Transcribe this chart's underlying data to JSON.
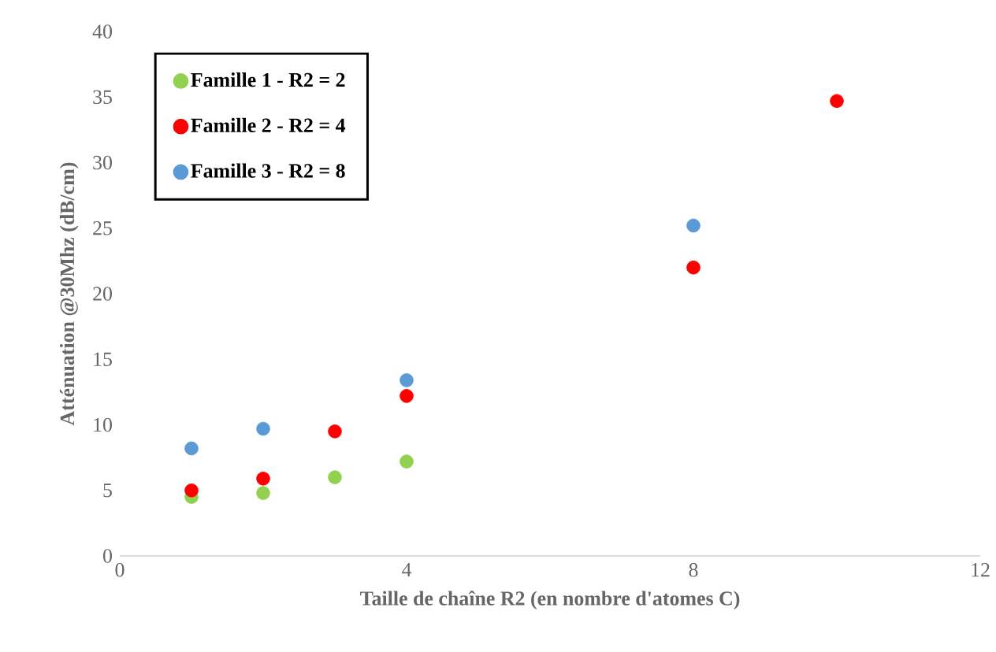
{
  "chart_data": {
    "type": "scatter",
    "xlabel": "Taille de chaîne R2 (en nombre d'atomes C)",
    "ylabel": "Atténuation @30Mhz (dB/cm)",
    "xlim": [
      0,
      12
    ],
    "xticks": [
      0,
      4,
      8,
      12
    ],
    "ylim": [
      0,
      40
    ],
    "yticks": [
      0,
      5,
      10,
      15,
      20,
      25,
      30,
      35,
      40
    ],
    "grid": false,
    "legend": "top left",
    "marker": "circle",
    "series": [
      {
        "name": "Famille 1 - R2 = 2",
        "color": "#92d050",
        "x": [
          1,
          2,
          3,
          4
        ],
        "values": [
          4.5,
          4.8,
          6.0,
          7.2
        ]
      },
      {
        "name": "Famille 2 - R2 = 4",
        "color": "#ff0000",
        "x": [
          1,
          2,
          3,
          4,
          8,
          10
        ],
        "values": [
          5.0,
          5.9,
          9.5,
          12.2,
          22.0,
          34.7
        ]
      },
      {
        "name": "Famille 3 - R2 = 8",
        "color": "#5b9bd5",
        "x": [
          1,
          2,
          4,
          8
        ],
        "values": [
          8.2,
          9.7,
          13.4,
          25.2
        ]
      }
    ]
  }
}
